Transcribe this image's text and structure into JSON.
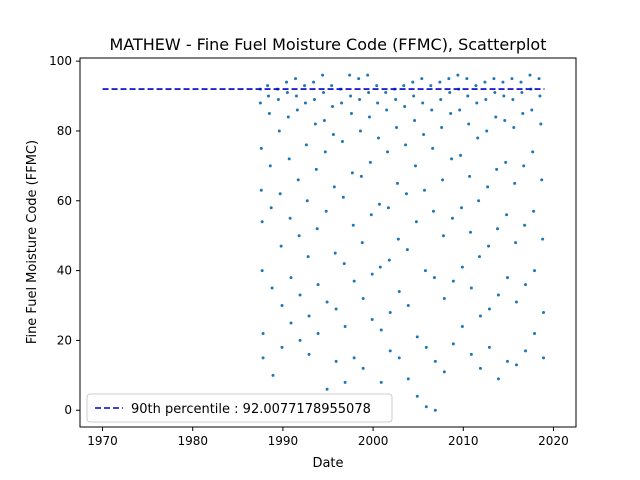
{
  "chart_data": {
    "type": "scatter",
    "title": "MATHEW - Fine Fuel Moisture Code (FFMC), Scatterplot",
    "xlabel": "Date",
    "ylabel": "Fine Fuel Moisture Code (FFMC)",
    "xlim": [
      1967.5,
      2022.5
    ],
    "ylim": [
      -4.8,
      100.9
    ],
    "x_ticks": [
      1970,
      1980,
      1990,
      2000,
      2010,
      2020
    ],
    "y_ticks": [
      0,
      20,
      40,
      60,
      80,
      100
    ],
    "data_x_range": [
      1987.3,
      2018.9
    ],
    "data_y_range": [
      0,
      96
    ],
    "data_density_note": "",
    "series": [
      {
        "kind": "points",
        "color": "#1f77b4",
        "points": [
          [
            1987.5,
            92
          ],
          [
            1987.5,
            88
          ],
          [
            1987.6,
            75
          ],
          [
            1987.6,
            63
          ],
          [
            1987.7,
            54
          ],
          [
            1987.7,
            40
          ],
          [
            1987.8,
            22
          ],
          [
            1987.8,
            15
          ],
          [
            1988.3,
            93
          ],
          [
            1988.4,
            90
          ],
          [
            1988.5,
            85
          ],
          [
            1988.6,
            70
          ],
          [
            1988.7,
            58
          ],
          [
            1988.8,
            35
          ],
          [
            1988.9,
            10
          ],
          [
            1989.4,
            92
          ],
          [
            1989.5,
            89
          ],
          [
            1989.6,
            80
          ],
          [
            1989.7,
            62
          ],
          [
            1989.8,
            47
          ],
          [
            1989.9,
            30
          ],
          [
            1989.9,
            18
          ],
          [
            1990.4,
            94
          ],
          [
            1990.5,
            91
          ],
          [
            1990.6,
            84
          ],
          [
            1990.7,
            72
          ],
          [
            1990.8,
            55
          ],
          [
            1990.9,
            38
          ],
          [
            1990.9,
            25
          ],
          [
            1991.4,
            95
          ],
          [
            1991.5,
            90
          ],
          [
            1991.6,
            86
          ],
          [
            1991.7,
            66
          ],
          [
            1991.8,
            50
          ],
          [
            1991.9,
            33
          ],
          [
            1991.9,
            20
          ],
          [
            1992.4,
            93
          ],
          [
            1992.5,
            88
          ],
          [
            1992.6,
            76
          ],
          [
            1992.7,
            60
          ],
          [
            1992.8,
            44
          ],
          [
            1992.9,
            27
          ],
          [
            1992.9,
            16
          ],
          [
            1993.4,
            94
          ],
          [
            1993.5,
            89
          ],
          [
            1993.6,
            82
          ],
          [
            1993.7,
            69
          ],
          [
            1993.8,
            52
          ],
          [
            1993.9,
            36
          ],
          [
            1993.9,
            22
          ],
          [
            1994.4,
            96
          ],
          [
            1994.5,
            91
          ],
          [
            1994.6,
            83
          ],
          [
            1994.7,
            74
          ],
          [
            1994.8,
            57
          ],
          [
            1994.9,
            31
          ],
          [
            1994.9,
            6
          ],
          [
            1995.4,
            93
          ],
          [
            1995.5,
            87
          ],
          [
            1995.6,
            79
          ],
          [
            1995.7,
            64
          ],
          [
            1995.8,
            45
          ],
          [
            1995.9,
            29
          ],
          [
            1995.9,
            14
          ],
          [
            1996.4,
            92
          ],
          [
            1996.5,
            88
          ],
          [
            1996.6,
            77
          ],
          [
            1996.7,
            61
          ],
          [
            1996.8,
            42
          ],
          [
            1996.9,
            24
          ],
          [
            1996.9,
            8
          ],
          [
            1997.4,
            96
          ],
          [
            1997.5,
            90
          ],
          [
            1997.6,
            85
          ],
          [
            1997.7,
            68
          ],
          [
            1997.8,
            53
          ],
          [
            1997.9,
            37
          ],
          [
            1997.9,
            15
          ],
          [
            1998.4,
            95
          ],
          [
            1998.5,
            89
          ],
          [
            1998.6,
            80
          ],
          [
            1998.7,
            67
          ],
          [
            1998.8,
            48
          ],
          [
            1998.9,
            32
          ],
          [
            1998.9,
            12
          ],
          [
            1999.4,
            96
          ],
          [
            1999.5,
            91
          ],
          [
            1999.6,
            84
          ],
          [
            1999.7,
            71
          ],
          [
            1999.8,
            56
          ],
          [
            1999.9,
            39
          ],
          [
            1999.9,
            26
          ],
          [
            2000.4,
            93
          ],
          [
            2000.5,
            88
          ],
          [
            2000.6,
            78
          ],
          [
            2000.7,
            59
          ],
          [
            2000.8,
            41
          ],
          [
            2000.9,
            23
          ],
          [
            2000.9,
            8
          ],
          [
            2001.4,
            91
          ],
          [
            2001.5,
            86
          ],
          [
            2001.6,
            74
          ],
          [
            2001.7,
            58
          ],
          [
            2001.8,
            43
          ],
          [
            2001.9,
            28
          ],
          [
            2001.9,
            17
          ],
          [
            2002.4,
            92
          ],
          [
            2002.5,
            89
          ],
          [
            2002.6,
            81
          ],
          [
            2002.7,
            65
          ],
          [
            2002.8,
            49
          ],
          [
            2002.9,
            34
          ],
          [
            2002.9,
            15
          ],
          [
            2003.4,
            93
          ],
          [
            2003.5,
            87
          ],
          [
            2003.6,
            76
          ],
          [
            2003.7,
            62
          ],
          [
            2003.8,
            46
          ],
          [
            2003.9,
            30
          ],
          [
            2003.9,
            9
          ],
          [
            2004.4,
            94
          ],
          [
            2004.5,
            90
          ],
          [
            2004.6,
            83
          ],
          [
            2004.7,
            70
          ],
          [
            2004.8,
            54
          ],
          [
            2004.9,
            21
          ],
          [
            2004.9,
            4
          ],
          [
            2005.4,
            95
          ],
          [
            2005.5,
            88
          ],
          [
            2005.6,
            79
          ],
          [
            2005.7,
            63
          ],
          [
            2005.8,
            40
          ],
          [
            2005.9,
            18
          ],
          [
            2005.9,
            1
          ],
          [
            2006.4,
            93
          ],
          [
            2006.5,
            86
          ],
          [
            2006.6,
            75
          ],
          [
            2006.7,
            57
          ],
          [
            2006.8,
            38
          ],
          [
            2006.9,
            14
          ],
          [
            2006.9,
            0
          ],
          [
            2007.4,
            94
          ],
          [
            2007.5,
            89
          ],
          [
            2007.6,
            81
          ],
          [
            2007.7,
            66
          ],
          [
            2007.8,
            50
          ],
          [
            2007.9,
            32
          ],
          [
            2007.9,
            11
          ],
          [
            2008.4,
            95
          ],
          [
            2008.5,
            91
          ],
          [
            2008.6,
            85
          ],
          [
            2008.7,
            72
          ],
          [
            2008.8,
            55
          ],
          [
            2008.9,
            37
          ],
          [
            2008.9,
            19
          ],
          [
            2009.4,
            96
          ],
          [
            2009.5,
            92
          ],
          [
            2009.6,
            86
          ],
          [
            2009.7,
            73
          ],
          [
            2009.8,
            58
          ],
          [
            2009.9,
            41
          ],
          [
            2009.9,
            24
          ],
          [
            2010.4,
            95
          ],
          [
            2010.5,
            90
          ],
          [
            2010.6,
            82
          ],
          [
            2010.7,
            67
          ],
          [
            2010.8,
            51
          ],
          [
            2010.9,
            35
          ],
          [
            2010.9,
            16
          ],
          [
            2011.4,
            93
          ],
          [
            2011.5,
            88
          ],
          [
            2011.6,
            78
          ],
          [
            2011.7,
            60
          ],
          [
            2011.8,
            44
          ],
          [
            2011.9,
            27
          ],
          [
            2011.9,
            12
          ],
          [
            2012.4,
            94
          ],
          [
            2012.5,
            89
          ],
          [
            2012.6,
            80
          ],
          [
            2012.7,
            64
          ],
          [
            2012.8,
            47
          ],
          [
            2012.9,
            29
          ],
          [
            2012.9,
            18
          ],
          [
            2013.4,
            95
          ],
          [
            2013.5,
            91
          ],
          [
            2013.6,
            84
          ],
          [
            2013.7,
            69
          ],
          [
            2013.8,
            52
          ],
          [
            2013.9,
            33
          ],
          [
            2013.9,
            9
          ],
          [
            2014.4,
            94
          ],
          [
            2014.5,
            90
          ],
          [
            2014.6,
            83
          ],
          [
            2014.7,
            71
          ],
          [
            2014.8,
            56
          ],
          [
            2014.9,
            38
          ],
          [
            2014.9,
            14
          ],
          [
            2015.4,
            95
          ],
          [
            2015.5,
            89
          ],
          [
            2015.6,
            81
          ],
          [
            2015.7,
            65
          ],
          [
            2015.8,
            48
          ],
          [
            2015.9,
            31
          ],
          [
            2015.9,
            13
          ],
          [
            2016.4,
            94
          ],
          [
            2016.5,
            91
          ],
          [
            2016.6,
            85
          ],
          [
            2016.7,
            70
          ],
          [
            2016.8,
            53
          ],
          [
            2016.9,
            36
          ],
          [
            2016.9,
            17
          ],
          [
            2017.4,
            96
          ],
          [
            2017.5,
            92
          ],
          [
            2017.6,
            86
          ],
          [
            2017.7,
            74
          ],
          [
            2017.8,
            57
          ],
          [
            2017.9,
            40
          ],
          [
            2017.9,
            22
          ],
          [
            2018.4,
            95
          ],
          [
            2018.5,
            90
          ],
          [
            2018.6,
            82
          ],
          [
            2018.7,
            66
          ],
          [
            2018.8,
            49
          ],
          [
            2018.9,
            28
          ],
          [
            2018.9,
            15
          ]
        ]
      }
    ],
    "reference_line": {
      "label": "90th percentile : 92.0077178955078",
      "y": 92.0077178955078,
      "x_range": [
        1970,
        2019
      ],
      "color": "#0000cc",
      "style": "dashed"
    },
    "legend": {
      "position": "lower-left",
      "entries": [
        "90th percentile : 92.0077178955078"
      ]
    },
    "grid": false
  }
}
